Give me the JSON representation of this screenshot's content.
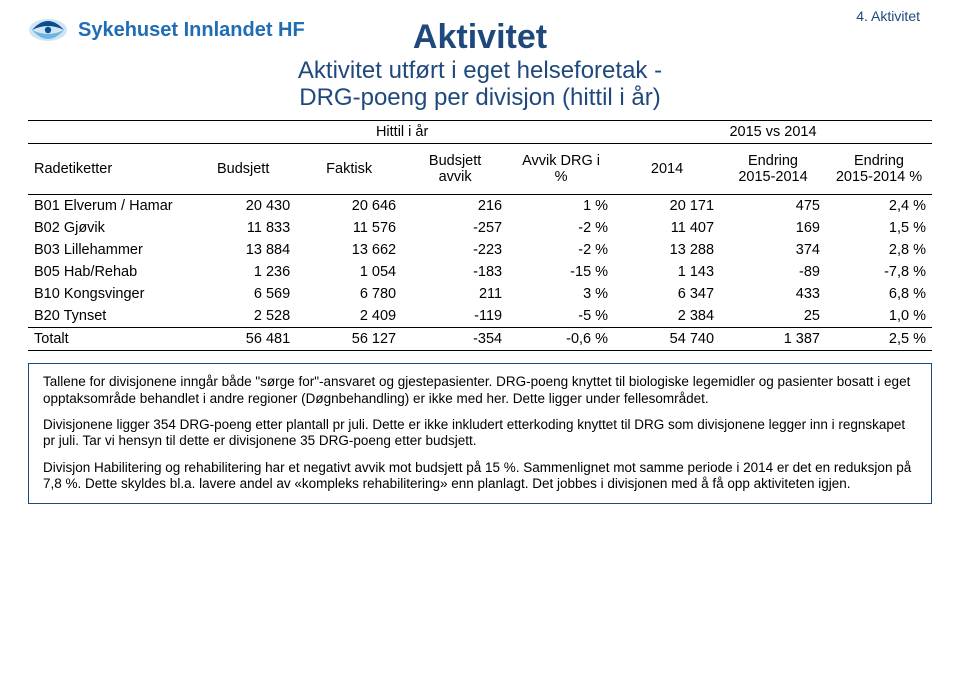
{
  "topRight": "4. Aktivitet",
  "logoText": "Sykehuset Innlandet HF",
  "title": "Aktivitet",
  "subtitle1": "Aktivitet utført i eget helseforetak -",
  "subtitle2": "DRG-poeng per divisjon (hittil i år)",
  "sup": {
    "hittil": "Hittil i år",
    "vs": "2015 vs 2014"
  },
  "headers": {
    "rad": "Radetiketter",
    "budsjett": "Budsjett",
    "faktisk": "Faktisk",
    "avvik": "Budsjett\navvik",
    "drg": "Avvik DRG i\n%",
    "y2014": "2014",
    "endring": "Endring\n2015-2014",
    "endringPct": "Endring\n2015-2014 %"
  },
  "rows": [
    {
      "label": "B01 Elverum / Hamar",
      "c": [
        "20 430",
        "20 646",
        "216",
        "1 %",
        "20 171",
        "475",
        "2,4 %"
      ]
    },
    {
      "label": "B02 Gjøvik",
      "c": [
        "11 833",
        "11 576",
        "-257",
        "-2 %",
        "11 407",
        "169",
        "1,5 %"
      ]
    },
    {
      "label": "B03 Lillehammer",
      "c": [
        "13 884",
        "13 662",
        "-223",
        "-2 %",
        "13 288",
        "374",
        "2,8 %"
      ]
    },
    {
      "label": "B05 Hab/Rehab",
      "c": [
        "1 236",
        "1 054",
        "-183",
        "-15 %",
        "1 143",
        "-89",
        "-7,8 %"
      ]
    },
    {
      "label": "B10 Kongsvinger",
      "c": [
        "6 569",
        "6 780",
        "211",
        "3 %",
        "6 347",
        "433",
        "6,8 %"
      ]
    },
    {
      "label": "B20 Tynset",
      "c": [
        "2 528",
        "2 409",
        "-119",
        "-5 %",
        "2 384",
        "25",
        "1,0 %"
      ]
    }
  ],
  "total": {
    "label": "Totalt",
    "c": [
      "56 481",
      "56 127",
      "-354",
      "-0,6 %",
      "54 740",
      "1 387",
      "2,5 %"
    ]
  },
  "notes": {
    "p1": "Tallene for divisjonene inngår både \"sørge for\"-ansvaret og gjestepasienter. DRG-poeng knyttet til biologiske legemidler og pasienter bosatt i eget opptaksområde behandlet i andre regioner (Døgnbehandling) er ikke med her. Dette ligger under fellesområdet.",
    "p2": "Divisjonene ligger 354 DRG-poeng etter plantall pr juli. Dette er ikke inkludert etterkoding knyttet til DRG som divisjonene legger inn i regnskapet pr juli. Tar vi hensyn til dette er divisjonene 35 DRG-poeng etter budsjett.",
    "p3": "Divisjon Habilitering og rehabilitering har et negativt avvik mot budsjett på 15 %. Sammenlignet mot samme periode i 2014 er det en reduksjon på 7,8 %. Dette skyldes bl.a. lavere andel av «kompleks rehabilitering» enn planlagt. Det jobbes i divisjonen med å få opp aktiviteten igjen."
  },
  "logoColors": {
    "dark": "#0a4e8c",
    "light": "#6fb3e0"
  }
}
